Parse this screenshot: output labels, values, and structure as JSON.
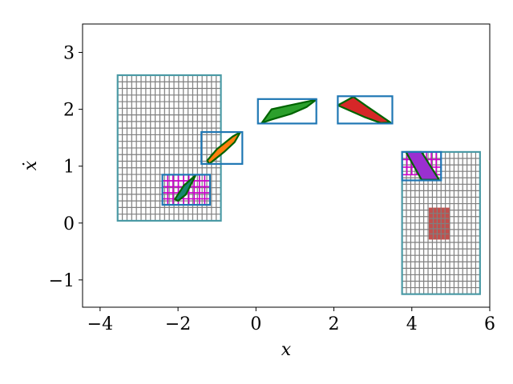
{
  "chart_data": {
    "type": "diagram-plot",
    "xlabel": "x",
    "ylabel": "ẋ",
    "xlim": [
      -4.45,
      6.0
    ],
    "ylim": [
      -1.48,
      3.5
    ],
    "xticks": [
      -4,
      -2,
      0,
      2,
      4,
      6
    ],
    "yticks": [
      -1,
      0,
      1,
      2,
      3
    ],
    "xtick_labels": [
      "−4",
      "−2",
      "0",
      "2",
      "4",
      "6"
    ],
    "ytick_labels": [
      "−1",
      "0",
      "1",
      "2",
      "3"
    ],
    "grid": false,
    "colors": {
      "teal": "#4a9aa5",
      "grid_cell": "#7f7f7f",
      "blue": "#1f77b4",
      "magenta": "#cc00cc",
      "dark_green": "#006400",
      "green_fill": "#2ca02c",
      "orange_fill": "#ff7f0e",
      "red_fill": "#d62728",
      "teal_fill": "#17866e",
      "purple_fill": "#9b30d0",
      "red_patch": "#c0504d"
    },
    "gridded_regions": [
      {
        "x": [
          -3.55,
          -0.9
        ],
        "y": [
          0.04,
          2.6
        ],
        "nx": 22,
        "ny": 22,
        "border": "teal",
        "cell": "grid_cell"
      },
      {
        "x": [
          3.75,
          5.75
        ],
        "y": [
          -1.25,
          1.25
        ],
        "nx": 18,
        "ny": 22,
        "border": "teal",
        "cell": "grid_cell"
      }
    ],
    "magenta_grids": [
      {
        "x": [
          -2.4,
          -1.18
        ],
        "y": [
          0.32,
          0.85
        ],
        "nx": 9,
        "ny": 5
      },
      {
        "x": [
          3.75,
          4.75
        ],
        "y": [
          0.85,
          1.25
        ],
        "nx": 8,
        "ny": 3
      }
    ],
    "rectangles": [
      {
        "x": [
          -1.4,
          -0.35
        ],
        "y": [
          1.04,
          1.6
        ],
        "color": "blue"
      },
      {
        "x": [
          0.05,
          1.55
        ],
        "y": [
          1.75,
          2.18
        ],
        "color": "blue"
      },
      {
        "x": [
          2.1,
          3.5
        ],
        "y": [
          1.75,
          2.23
        ],
        "color": "blue"
      },
      {
        "x": [
          -2.4,
          -1.18
        ],
        "y": [
          0.32,
          0.85
        ],
        "color": "blue"
      },
      {
        "x": [
          3.75,
          4.75
        ],
        "y": [
          0.75,
          1.25
        ],
        "color": "blue"
      }
    ],
    "polygons": [
      {
        "points": [
          [
            0.15,
            1.76
          ],
          [
            0.4,
            2.0
          ],
          [
            0.8,
            2.06
          ],
          [
            1.55,
            2.17
          ],
          [
            1.3,
            2.04
          ],
          [
            0.9,
            1.92
          ],
          [
            0.4,
            1.82
          ]
        ],
        "fill": "green_fill",
        "edge": "dark_green"
      },
      {
        "points": [
          [
            -1.25,
            1.1
          ],
          [
            -1.0,
            1.3
          ],
          [
            -0.6,
            1.52
          ],
          [
            -0.4,
            1.6
          ],
          [
            -0.55,
            1.42
          ],
          [
            -0.8,
            1.26
          ],
          [
            -1.2,
            1.04
          ]
        ],
        "fill": "orange_fill",
        "edge": "dark_green"
      },
      {
        "points": [
          [
            2.1,
            2.07
          ],
          [
            2.5,
            2.22
          ],
          [
            2.85,
            2.05
          ],
          [
            3.45,
            1.77
          ],
          [
            3.2,
            1.76
          ],
          [
            2.8,
            1.86
          ]
        ],
        "fill": "red_fill",
        "edge": "dark_green"
      },
      {
        "points": [
          [
            -2.08,
            0.42
          ],
          [
            -1.85,
            0.66
          ],
          [
            -1.55,
            0.84
          ],
          [
            -1.8,
            0.5
          ],
          [
            -2.0,
            0.39
          ]
        ],
        "fill": "teal_fill",
        "edge": "dark_green"
      },
      {
        "points": [
          [
            3.85,
            1.25
          ],
          [
            4.25,
            1.25
          ],
          [
            4.7,
            0.76
          ],
          [
            4.25,
            0.76
          ]
        ],
        "fill": "purple_fill",
        "edge": "dark_green"
      }
    ],
    "patches": [
      {
        "x": [
          4.45,
          4.95
        ],
        "y": [
          -0.28,
          0.26
        ],
        "nx": 5,
        "ny": 6,
        "fill": "red_patch",
        "cell": "grid_cell"
      }
    ]
  }
}
